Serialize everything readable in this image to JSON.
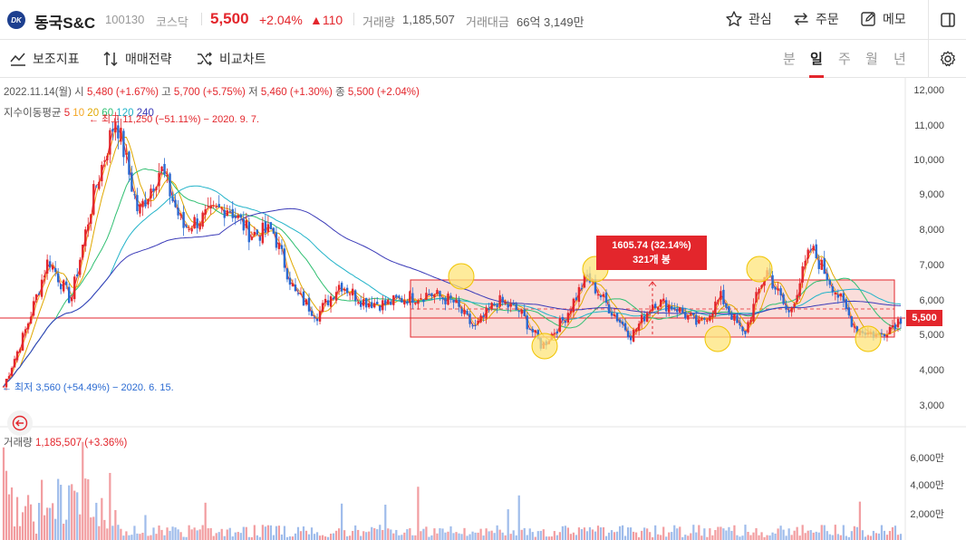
{
  "header": {
    "logo_text": "DK",
    "name": "동국S&C",
    "code": "100130",
    "market": "코스닥",
    "price": "5,500",
    "change_pct": "+2.04%",
    "change": "▲110",
    "volume_label": "거래량",
    "volume": "1,185,507",
    "amount_label": "거래대금",
    "amount": "66억 3,149만",
    "watch_label": "관심",
    "order_label": "주문",
    "memo_label": "메모"
  },
  "toolbar": {
    "indicator_label": "보조지표",
    "strategy_label": "매매전략",
    "compare_label": "비교차트",
    "periods": [
      "분",
      "일",
      "주",
      "월",
      "년"
    ],
    "active_period": "일"
  },
  "info": {
    "date": "2022.11.14(월)",
    "open_label": "시",
    "open": "5,480 (+1.67%)",
    "high_label": "고",
    "high": "5,700 (+5.75%)",
    "low_label": "저",
    "low": "5,460 (+1.30%)",
    "close_label": "종",
    "close": "5,500 (+2.04%)",
    "ma_label": "지수이동평균",
    "ma5": "5",
    "ma10": "10",
    "ma20": "20",
    "ma60": "60",
    "ma120": "120",
    "ma240": "240",
    "max_note": "← 최고 11,250 (−51.11%) − 2020. 9. 7.",
    "min_note": "← 최저 3,560 (+54.49%) − 2020. 6. 15.",
    "volume_label": "거래량",
    "volume_value": "1,185,507 (+3.36%)"
  },
  "tooltip": {
    "line1": "1605.74 (32.14%)",
    "line2": "321개 봉"
  },
  "price_axis": [
    "12,000",
    "11,000",
    "10,000",
    "9,000",
    "8,000",
    "7,000",
    "6,000",
    "5,000",
    "4,000",
    "3,000"
  ],
  "current_price_tag": "5,500",
  "volume_axis": [
    "6,000만",
    "4,000만",
    "2,000만"
  ],
  "colors": {
    "up": "#e3262c",
    "down": "#2a6ad2",
    "ma5": "#e3262c",
    "ma10": "#f5a623",
    "ma20": "#e0a800",
    "ma60": "#2fbf71",
    "ma120": "#22b3c9",
    "ma240": "#3b3bb8",
    "box_fill": "#f7c6c2",
    "circle": "#fde47a"
  },
  "chart_data": {
    "type": "candlestick",
    "y_range": [
      3000,
      12000
    ],
    "note": "Daily candles from 2020 to 2022-11-14; last close 5,500",
    "sampled_closes": [
      3560,
      5200,
      7200,
      6000,
      9000,
      11250,
      8500,
      9800,
      8100,
      8400,
      8700,
      7900,
      8000,
      6200,
      5600,
      6500,
      6000,
      5900,
      6100,
      6200,
      6000,
      5200,
      6000,
      5700,
      4700,
      5500,
      6700,
      5800,
      5000,
      6000,
      5800,
      5300,
      6100,
      5000,
      6900,
      5600,
      7500,
      6400,
      5200,
      5000,
      5500
    ]
  }
}
